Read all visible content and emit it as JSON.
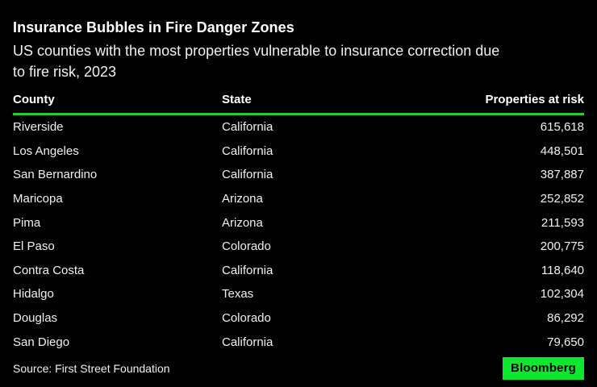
{
  "colors": {
    "background": "#000000",
    "title_text": "#ffffff",
    "body_text": "#f0f0f0",
    "rule_green": "#2bcb2b",
    "badge_green": "#0ce82e",
    "badge_text": "#000000"
  },
  "header": {
    "subtitle_lines": [
      "US counties with the most properties vulnerable to insurance correction due",
      "to fire risk, 2023"
    ]
  },
  "chart_data": {
    "type": "table",
    "title": "Insurance Bubbles in Fire Danger Zones",
    "subtitle": "US counties with the most properties vulnerable to insurance correction due to fire risk, 2023",
    "columns": [
      "County",
      "State",
      "Properties at risk"
    ],
    "rows": [
      {
        "county": "Riverside",
        "state": "California",
        "value": "615,618"
      },
      {
        "county": "Los Angeles",
        "state": "California",
        "value": "448,501"
      },
      {
        "county": "San Bernardino",
        "state": "California",
        "value": "387,887"
      },
      {
        "county": "Maricopa",
        "state": "Arizona",
        "value": "252,852"
      },
      {
        "county": "Pima",
        "state": "Arizona",
        "value": "211,593"
      },
      {
        "county": "El Paso",
        "state": "Colorado",
        "value": "200,775"
      },
      {
        "county": "Contra Costa",
        "state": "California",
        "value": "118,640"
      },
      {
        "county": "Hidalgo",
        "state": "Texas",
        "value": "102,304"
      },
      {
        "county": "Douglas",
        "state": "Colorado",
        "value": "86,292"
      },
      {
        "county": "San Diego",
        "state": "California",
        "value": "79,650"
      }
    ],
    "values_numeric": [
      615618,
      448501,
      387887,
      252852,
      211593,
      200775,
      118640,
      102304,
      86292,
      79650
    ],
    "legend": "none",
    "grid": "off"
  },
  "footer": {
    "source": "Source: First Street Foundation",
    "brand": "Bloomberg"
  }
}
